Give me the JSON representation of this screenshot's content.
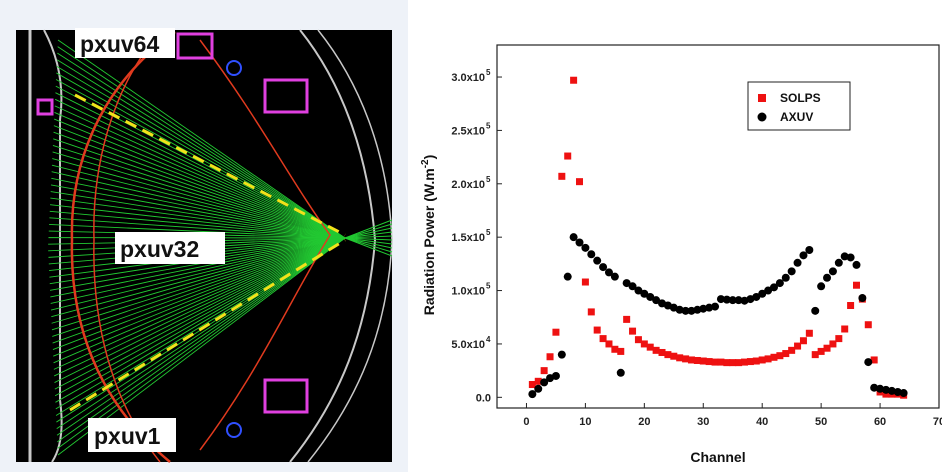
{
  "diagram": {
    "labels": {
      "top": "pxuv64",
      "middle": "pxuv32",
      "bottom": "pxuv1"
    },
    "colors": {
      "background": "#000000",
      "sightlines": "#22c832",
      "contour": "#e03a1e",
      "fan_edges": "#f2e21a",
      "wall": "#c8c8c8",
      "ports": "#e040e0"
    }
  },
  "chart_data": {
    "type": "scatter",
    "xlabel": "Channel",
    "ylabel": "Radiation Power (W.m",
    "ylabel_sup": "-2",
    "ylabel_close": ")",
    "xlim": [
      -5,
      70
    ],
    "ylim": [
      -10000,
      330000
    ],
    "x_ticks": [
      {
        "value": 0,
        "label": "0"
      },
      {
        "value": 10,
        "label": "10"
      },
      {
        "value": 20,
        "label": "20"
      },
      {
        "value": 30,
        "label": "30"
      },
      {
        "value": 40,
        "label": "40"
      },
      {
        "value": 50,
        "label": "50"
      },
      {
        "value": 60,
        "label": "60"
      },
      {
        "value": 70,
        "label": "70"
      }
    ],
    "y_ticks": [
      {
        "value": 0,
        "label": "0.0",
        "exp": ""
      },
      {
        "value": 50000,
        "label": "5.0x10",
        "exp": "4"
      },
      {
        "value": 100000,
        "label": "1.0x10",
        "exp": "5"
      },
      {
        "value": 150000,
        "label": "1.5x10",
        "exp": "5"
      },
      {
        "value": 200000,
        "label": "2.0x10",
        "exp": "5"
      },
      {
        "value": 250000,
        "label": "2.5x10",
        "exp": "5"
      },
      {
        "value": 300000,
        "label": "3.0x10",
        "exp": "5"
      }
    ],
    "legend_position": "top-right",
    "series": [
      {
        "name": "SOLPS",
        "marker": "square",
        "color": "#ee1111",
        "points": [
          [
            1,
            12000
          ],
          [
            2,
            15000
          ],
          [
            3,
            25000
          ],
          [
            4,
            38000
          ],
          [
            5,
            61000
          ],
          [
            6,
            207000
          ],
          [
            7,
            226000
          ],
          [
            8,
            297000
          ],
          [
            9,
            202000
          ],
          [
            10,
            108000
          ],
          [
            11,
            80000
          ],
          [
            12,
            63000
          ],
          [
            13,
            55000
          ],
          [
            14,
            50000
          ],
          [
            15,
            45000
          ],
          [
            16,
            43000
          ],
          [
            17,
            73000
          ],
          [
            18,
            62000
          ],
          [
            19,
            54000
          ],
          [
            20,
            50000
          ],
          [
            21,
            47000
          ],
          [
            22,
            44000
          ],
          [
            23,
            42000
          ],
          [
            24,
            40000
          ],
          [
            25,
            38500
          ],
          [
            26,
            37000
          ],
          [
            27,
            36000
          ],
          [
            28,
            35000
          ],
          [
            29,
            34500
          ],
          [
            30,
            34000
          ],
          [
            31,
            33500
          ],
          [
            32,
            33000
          ],
          [
            33,
            33000
          ],
          [
            34,
            32500
          ],
          [
            35,
            32500
          ],
          [
            36,
            32500
          ],
          [
            37,
            33000
          ],
          [
            38,
            33500
          ],
          [
            39,
            34000
          ],
          [
            40,
            35000
          ],
          [
            41,
            36000
          ],
          [
            42,
            37500
          ],
          [
            43,
            39000
          ],
          [
            44,
            41000
          ],
          [
            45,
            44000
          ],
          [
            46,
            48000
          ],
          [
            47,
            53000
          ],
          [
            48,
            60000
          ],
          [
            49,
            40000
          ],
          [
            50,
            43000
          ],
          [
            51,
            46000
          ],
          [
            52,
            50000
          ],
          [
            53,
            55000
          ],
          [
            54,
            64000
          ],
          [
            55,
            86000
          ],
          [
            56,
            105000
          ],
          [
            57,
            92000
          ],
          [
            58,
            68000
          ],
          [
            59,
            35000
          ],
          [
            60,
            5000
          ],
          [
            61,
            3000
          ],
          [
            62,
            3000
          ],
          [
            63,
            3000
          ],
          [
            64,
            2000
          ]
        ]
      },
      {
        "name": "AXUV",
        "marker": "circle",
        "color": "#000000",
        "points": [
          [
            1,
            3000
          ],
          [
            2,
            8000
          ],
          [
            3,
            14000
          ],
          [
            4,
            18000
          ],
          [
            5,
            20000
          ],
          [
            6,
            40000
          ],
          [
            7,
            113000
          ],
          [
            8,
            150000
          ],
          [
            9,
            145000
          ],
          [
            10,
            140000
          ],
          [
            11,
            134000
          ],
          [
            12,
            128000
          ],
          [
            13,
            122000
          ],
          [
            14,
            117000
          ],
          [
            15,
            113000
          ],
          [
            16,
            23000
          ],
          [
            17,
            107000
          ],
          [
            18,
            104000
          ],
          [
            19,
            100000
          ],
          [
            20,
            97000
          ],
          [
            21,
            94000
          ],
          [
            22,
            91000
          ],
          [
            23,
            88000
          ],
          [
            24,
            86000
          ],
          [
            25,
            84000
          ],
          [
            26,
            82000
          ],
          [
            27,
            81000
          ],
          [
            28,
            81000
          ],
          [
            29,
            82000
          ],
          [
            30,
            83000
          ],
          [
            31,
            84000
          ],
          [
            32,
            85000
          ],
          [
            33,
            92000
          ],
          [
            34,
            91500
          ],
          [
            35,
            91000
          ],
          [
            36,
            91000
          ],
          [
            37,
            90500
          ],
          [
            38,
            92000
          ],
          [
            39,
            94000
          ],
          [
            40,
            97000
          ],
          [
            41,
            100000
          ],
          [
            42,
            103000
          ],
          [
            43,
            107000
          ],
          [
            44,
            112000
          ],
          [
            45,
            118000
          ],
          [
            46,
            126000
          ],
          [
            47,
            133000
          ],
          [
            48,
            138000
          ],
          [
            49,
            81000
          ],
          [
            50,
            104000
          ],
          [
            51,
            112000
          ],
          [
            52,
            118000
          ],
          [
            53,
            126000
          ],
          [
            54,
            132000
          ],
          [
            55,
            131000
          ],
          [
            56,
            124000
          ],
          [
            57,
            93000
          ],
          [
            58,
            33000
          ],
          [
            59,
            9000
          ],
          [
            60,
            8000
          ],
          [
            61,
            7000
          ],
          [
            62,
            6000
          ],
          [
            63,
            5000
          ],
          [
            64,
            4000
          ]
        ]
      }
    ]
  }
}
